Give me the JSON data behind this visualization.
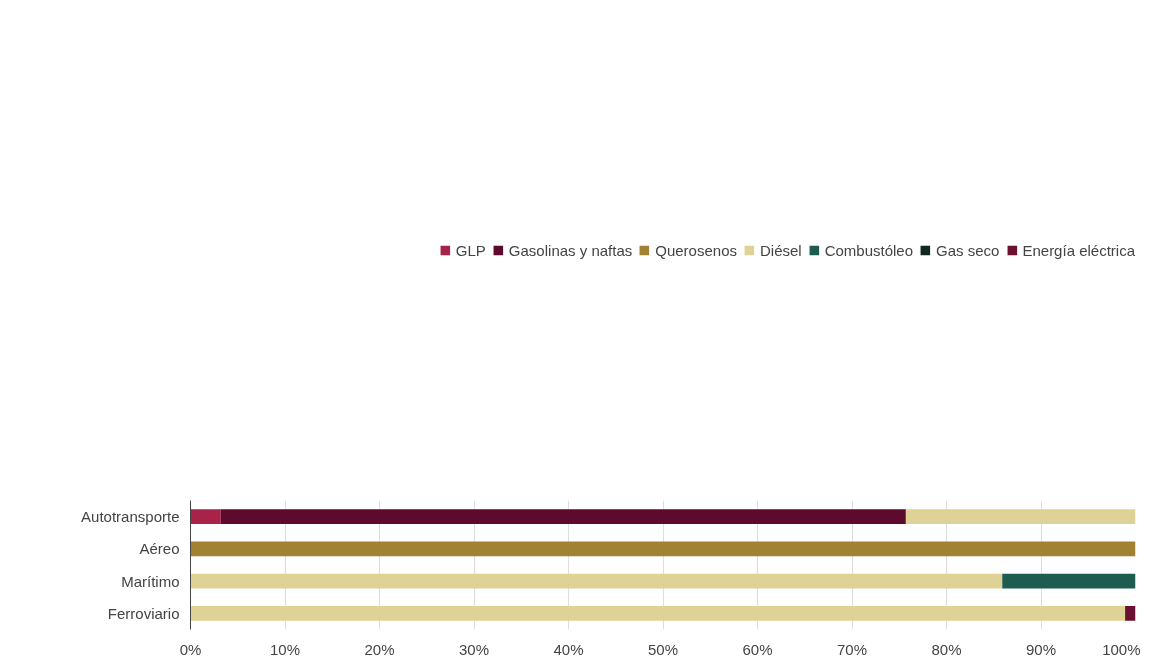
{
  "chart_data": {
    "type": "bar",
    "orientation": "horizontal",
    "stacked": true,
    "legend": "top",
    "grid": "x",
    "categories": [
      "Autotransporte",
      "Aéreo",
      "Marítimo",
      "Ferroviario"
    ],
    "xlim": [
      0,
      100
    ],
    "xticks": [
      {
        "value": 0,
        "label": "0%"
      },
      {
        "value": 10,
        "label": "10%"
      },
      {
        "value": 20,
        "label": "20%"
      },
      {
        "value": 30,
        "label": "30%"
      },
      {
        "value": 40,
        "label": "40%"
      },
      {
        "value": 50,
        "label": "50%"
      },
      {
        "value": 60,
        "label": "60%"
      },
      {
        "value": 70,
        "label": "70%"
      },
      {
        "value": 80,
        "label": "80%"
      },
      {
        "value": 90,
        "label": "90%"
      },
      {
        "value": 100,
        "label": "100%"
      }
    ],
    "series": [
      {
        "name": "GLP",
        "color": "#a8234a",
        "values": [
          3.2,
          0,
          0,
          0
        ]
      },
      {
        "name": "Gasolinas y naftas",
        "color": "#5e0a2e",
        "values": [
          72.5,
          0,
          0,
          0
        ]
      },
      {
        "name": "Querosenos",
        "color": "#a08232",
        "values": [
          0,
          100,
          0,
          0
        ]
      },
      {
        "name": "Diésel",
        "color": "#dfd296",
        "values": [
          24.3,
          0,
          85.9,
          98.9
        ]
      },
      {
        "name": "Combustóleo",
        "color": "#1f5c50",
        "values": [
          0,
          0,
          14.1,
          0
        ]
      },
      {
        "name": "Gas seco",
        "color": "#12281f",
        "values": [
          0,
          0,
          0,
          0
        ]
      },
      {
        "name": "Energía eléctrica",
        "color": "#6a1030",
        "values": [
          0,
          0,
          0,
          1.1
        ]
      }
    ]
  }
}
